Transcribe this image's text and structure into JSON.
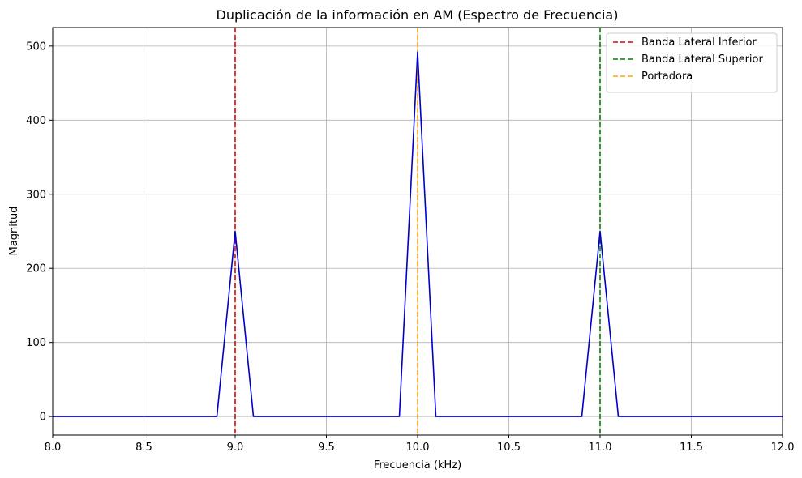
{
  "chart_data": {
    "type": "line",
    "title": "Duplicación de la información en AM (Espectro de Frecuencia)",
    "xlabel": "Frecuencia (kHz)",
    "ylabel": "Magnitud",
    "xlim": [
      8.0,
      12.0
    ],
    "ylim": [
      -25,
      525
    ],
    "xticks": [
      8.0,
      8.5,
      9.0,
      9.5,
      10.0,
      10.5,
      11.0,
      11.5,
      12.0
    ],
    "xtick_labels": [
      "8.0",
      "8.5",
      "9.0",
      "9.5",
      "10.0",
      "10.5",
      "11.0",
      "11.5",
      "12.0"
    ],
    "yticks": [
      0,
      100,
      200,
      300,
      400,
      500
    ],
    "ytick_labels": [
      "0",
      "100",
      "200",
      "300",
      "400",
      "500"
    ],
    "grid": true,
    "legend_position": "top-right",
    "series": [
      {
        "color": "#0000cc",
        "style": "solid",
        "x": [
          8.0,
          8.9,
          9.0,
          9.1,
          9.9,
          10.0,
          10.1,
          10.9,
          11.0,
          11.1,
          12.0
        ],
        "y": [
          0,
          0,
          250,
          0,
          0,
          492,
          0,
          0,
          250,
          0,
          0
        ]
      }
    ],
    "reference_lines": [
      {
        "name": "Banda Lateral Inferior",
        "x": 9.0,
        "color": "#e00000",
        "style": "dashed"
      },
      {
        "name": "Banda Lateral Superior",
        "x": 11.0,
        "color": "#008000",
        "style": "dashed"
      },
      {
        "name": "Portadora",
        "x": 10.0,
        "color": "#ffa500",
        "style": "dashed"
      }
    ]
  }
}
